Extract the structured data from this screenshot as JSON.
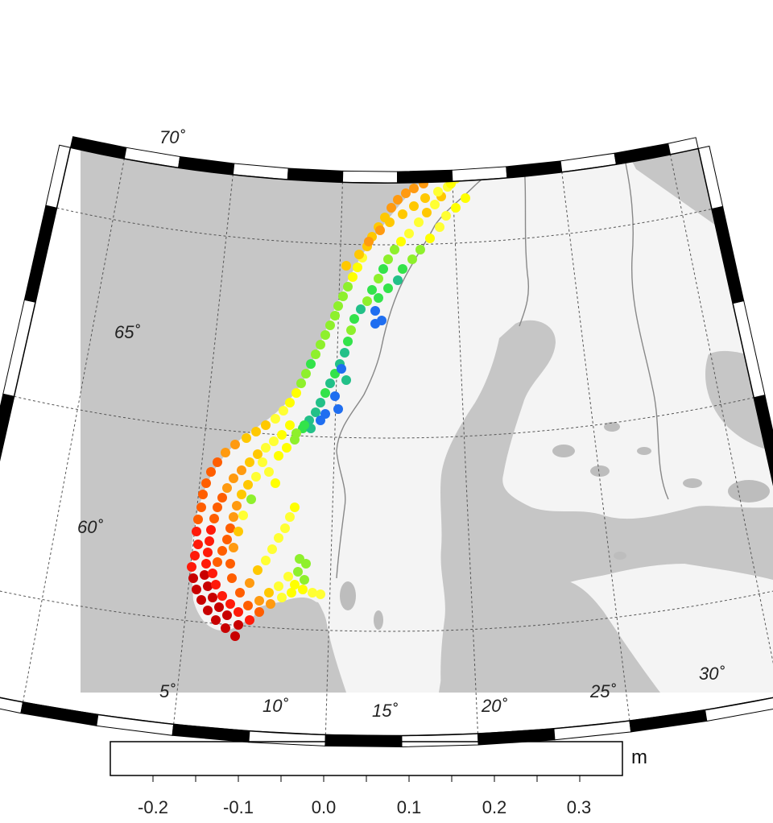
{
  "colors": {
    "sea": "#c6c6c6",
    "land": "#f4f4f4",
    "lake": "#bdbdbd",
    "border": "#888888",
    "graticule": "#555555",
    "frame_black": "#000000",
    "frame_white": "#ffffff"
  },
  "graticule": {
    "lon_labels": [
      "5˚",
      "10˚",
      "15˚",
      "20˚",
      "25˚",
      "30˚"
    ],
    "lat_labels": [
      "60˚",
      "65˚",
      "70˚"
    ]
  },
  "colorbar": {
    "unit": "m",
    "colors": [
      "#0a2ad6",
      "#1f6ef0",
      "#22c088",
      "#33e34a",
      "#8ef02c",
      "#ffff00",
      "#ffff33",
      "#ffc800",
      "#ff9a10",
      "#ff5e00",
      "#ff1a0a",
      "#c80000"
    ],
    "tick_labels": [
      "-0.2",
      "-0.1",
      "0.0",
      "0.1",
      "0.2",
      "0.3"
    ]
  }
}
